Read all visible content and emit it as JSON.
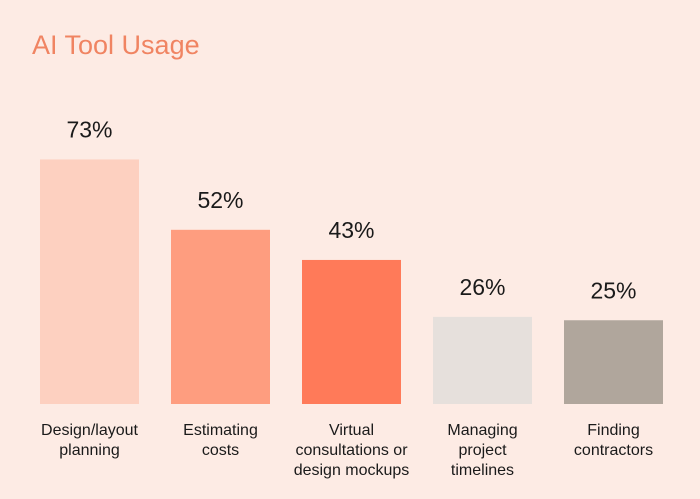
{
  "chart_data": {
    "type": "bar",
    "title": "AI Tool Usage",
    "categories": [
      [
        "Design/layout",
        "planning"
      ],
      [
        "Estimating",
        "costs"
      ],
      [
        "Virtual",
        "consultations or",
        "design mockups"
      ],
      [
        "Managing",
        "project",
        "timelines"
      ],
      [
        "Finding",
        "contractors"
      ]
    ],
    "values": [
      73,
      52,
      43,
      26,
      25
    ],
    "value_labels": [
      "73%",
      "52%",
      "43%",
      "26%",
      "25%"
    ],
    "colors": [
      "#fdd0c0",
      "#fe9d7f",
      "#ff7a59",
      "#e6e0dc",
      "#b0a69c"
    ],
    "ylim": [
      0,
      100
    ],
    "grid": false,
    "legend": "none"
  }
}
